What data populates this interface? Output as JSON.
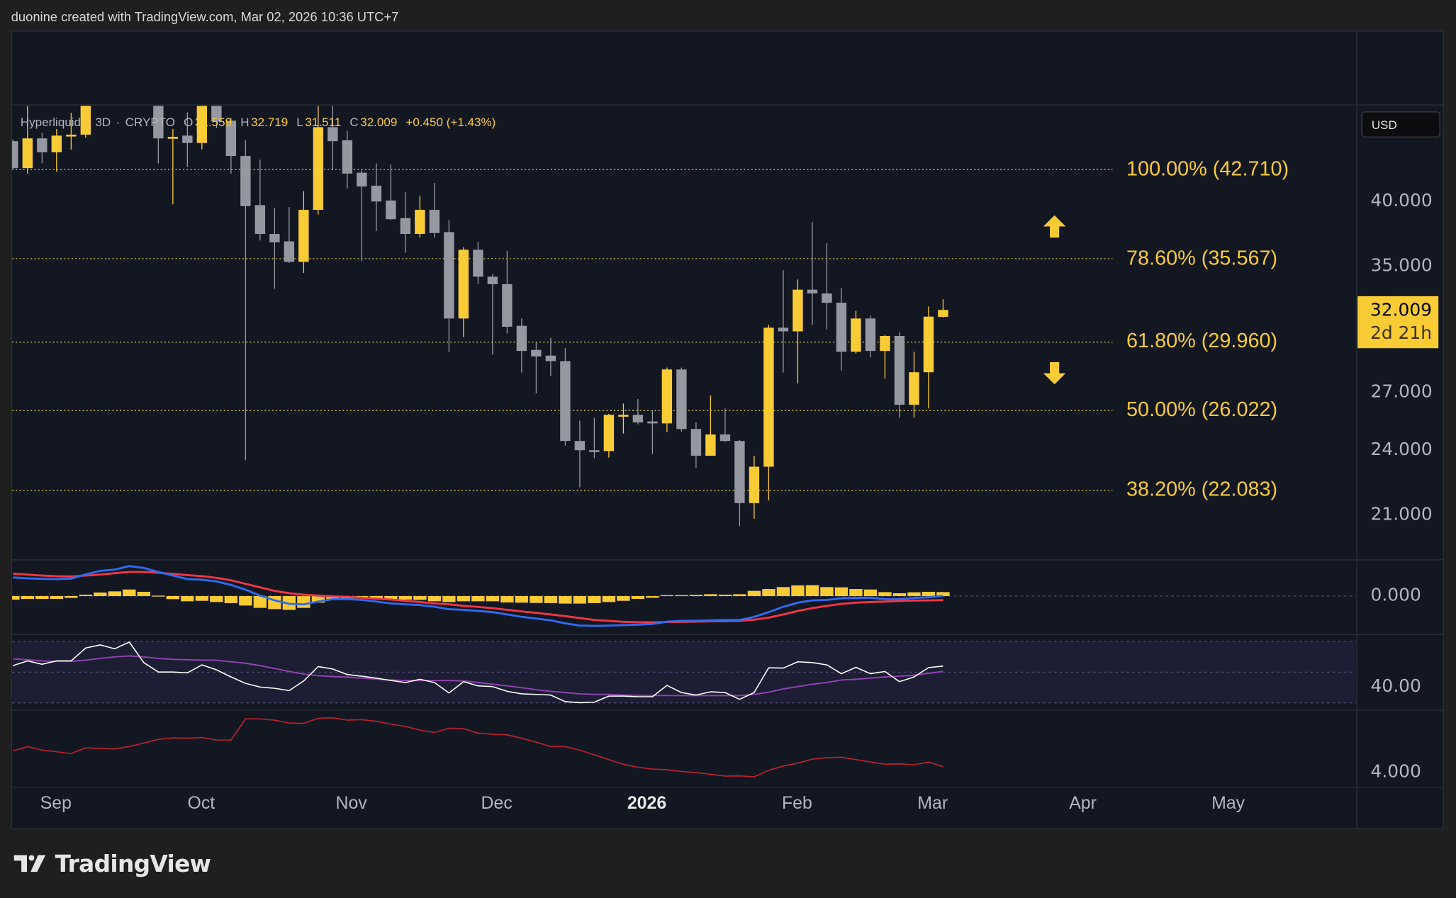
{
  "header": {
    "attribution": "duonine created with TradingView.com, Mar 02, 2026 10:36 UTC+7"
  },
  "legend": {
    "symbol": "Hyperliquid",
    "sep1": "·",
    "interval": "3D",
    "sep2": "·",
    "exchange": "CRYPTO",
    "open_label": "O",
    "open": "31.559",
    "high_label": "H",
    "high": "32.719",
    "low_label": "L",
    "low": "31.511",
    "close_label": "C",
    "close": "32.009",
    "change": "+0.450 (+1.43%)"
  },
  "price_axis": {
    "currency_button": "USD",
    "scale": "log",
    "ticks": [
      {
        "label": "40.000",
        "value": 40
      },
      {
        "label": "35.000",
        "value": 35
      },
      {
        "label": "27.000",
        "value": 27
      },
      {
        "label": "24.000",
        "value": 24
      },
      {
        "label": "21.000",
        "value": 21
      }
    ]
  },
  "price_tag": {
    "price": "32.009",
    "countdown": "2d 21h"
  },
  "indicator_axes": {
    "macd": {
      "label": "0.000",
      "value": 0
    },
    "rsi": {
      "label": "40.00",
      "value": 40
    },
    "lower": {
      "label": "4.000",
      "value": 4
    }
  },
  "time_axis": [
    {
      "label": "Sep",
      "date": "2025-09-01",
      "bold": false
    },
    {
      "label": "Oct",
      "date": "2025-10-01",
      "bold": false
    },
    {
      "label": "Nov",
      "date": "2025-11-01",
      "bold": false
    },
    {
      "label": "Dec",
      "date": "2025-12-01",
      "bold": false
    },
    {
      "label": "2026",
      "date": "2026-01-01",
      "bold": true
    },
    {
      "label": "Feb",
      "date": "2026-02-01",
      "bold": false
    },
    {
      "label": "Mar",
      "date": "2026-03-01",
      "bold": false
    },
    {
      "label": "Apr",
      "date": "2026-04-01",
      "bold": false
    },
    {
      "label": "May",
      "date": "2026-05-01",
      "bold": false
    }
  ],
  "fib_levels": [
    {
      "label": "100.00% (42.710)",
      "ratio": 1.0,
      "price": 42.71
    },
    {
      "label": "78.60% (35.567)",
      "ratio": 0.786,
      "price": 35.567
    },
    {
      "label": "61.80% (29.960)",
      "ratio": 0.618,
      "price": 29.96
    },
    {
      "label": "50.00% (26.022)",
      "ratio": 0.5,
      "price": 26.022
    },
    {
      "label": "38.20% (22.083)",
      "ratio": 0.382,
      "price": 22.083
    }
  ],
  "markers": [
    {
      "type": "arrow-up",
      "date": "2026-03-25",
      "price": 38.0
    },
    {
      "type": "arrow-down",
      "date": "2026-03-25",
      "price": 28.1
    }
  ],
  "colors": {
    "up": "#f9cb35",
    "down": "#9598a1",
    "fib": "#d9c64a",
    "macd": "#2f6bf0",
    "signal": "#f23645",
    "histogram": "#f9cb35",
    "rsi": "#ffffff",
    "rsi_ma": "#8e44ad",
    "rsi_band": "#1d1d33",
    "lower": "#b5232f",
    "pane_bg": "#131722",
    "border": "#2a2e39"
  },
  "logo": {
    "text": "TradingView"
  },
  "chart_data": {
    "type": "candlestick",
    "y_scale": "log",
    "candle_fields": [
      "date",
      "open",
      "high",
      "low",
      "close"
    ],
    "candles": [
      [
        "2025-08-22",
        45.28,
        45.45,
        42.68,
        42.84
      ],
      [
        "2025-08-25",
        42.84,
        50.0,
        42.36,
        45.54
      ],
      [
        "2025-08-28",
        45.54,
        46.06,
        43.27,
        44.26
      ],
      [
        "2025-08-31",
        44.26,
        46.42,
        42.52,
        45.8
      ],
      [
        "2025-09-03",
        45.8,
        48.0,
        44.5,
        45.89
      ],
      [
        "2025-09-06",
        45.89,
        50.5,
        45.6,
        49.8
      ],
      [
        "2025-09-09",
        null,
        null,
        null,
        null
      ],
      [
        "2025-09-12",
        null,
        null,
        null,
        null
      ],
      [
        "2025-09-15",
        null,
        null,
        null,
        null
      ],
      [
        "2025-09-18",
        null,
        null,
        null,
        null
      ],
      [
        "2025-09-21",
        50.0,
        51.0,
        43.26,
        45.54
      ],
      [
        "2025-09-24",
        45.6,
        46.42,
        39.77,
        45.68
      ],
      [
        "2025-09-27",
        45.8,
        48.04,
        42.92,
        45.11
      ],
      [
        "2025-09-30",
        45.11,
        50.0,
        44.51,
        49.5
      ],
      [
        "2025-10-03",
        50.5,
        51.0,
        46.5,
        47.14
      ],
      [
        "2025-10-06",
        47.23,
        47.5,
        42.36,
        43.92
      ],
      [
        "2025-10-09",
        43.92,
        45.36,
        23.5,
        39.62
      ],
      [
        "2025-10-12",
        39.7,
        43.58,
        36.92,
        37.42
      ],
      [
        "2025-10-15",
        37.42,
        39.47,
        33.43,
        36.78
      ],
      [
        "2025-10-18",
        36.85,
        39.55,
        35.26,
        35.33
      ],
      [
        "2025-10-21",
        35.33,
        40.85,
        34.54,
        39.32
      ],
      [
        "2025-10-24",
        39.32,
        49.0,
        38.94,
        46.6
      ],
      [
        "2025-10-27",
        46.6,
        49.5,
        42.68,
        45.28
      ],
      [
        "2025-10-30",
        45.36,
        46.24,
        41.08,
        42.36
      ],
      [
        "2025-11-02",
        42.44,
        42.68,
        35.4,
        41.25
      ],
      [
        "2025-11-05",
        41.32,
        43.26,
        37.63,
        40.0
      ],
      [
        "2025-11-08",
        40.08,
        43.17,
        38.5,
        38.57
      ],
      [
        "2025-11-11",
        38.65,
        40.77,
        36.0,
        37.42
      ],
      [
        "2025-11-14",
        37.42,
        40.46,
        37.13,
        39.32
      ],
      [
        "2025-11-17",
        39.32,
        41.56,
        37.13,
        37.49
      ],
      [
        "2025-11-20",
        37.56,
        38.5,
        29.37,
        31.45
      ],
      [
        "2025-11-23",
        31.45,
        36.4,
        30.28,
        36.22
      ],
      [
        "2025-11-26",
        36.22,
        36.8,
        33.75,
        34.27
      ],
      [
        "2025-11-29",
        34.27,
        34.47,
        29.2,
        33.75
      ],
      [
        "2025-12-02",
        33.75,
        36.15,
        30.5,
        30.92
      ],
      [
        "2025-12-05",
        30.98,
        31.45,
        28.15,
        29.42
      ],
      [
        "2025-12-08",
        29.48,
        30.0,
        26.96,
        29.09
      ],
      [
        "2025-12-11",
        29.14,
        30.22,
        27.95,
        28.81
      ],
      [
        "2025-12-14",
        28.81,
        29.59,
        24.22,
        24.45
      ],
      [
        "2025-12-17",
        24.45,
        25.5,
        22.23,
        23.99
      ],
      [
        "2025-12-20",
        23.99,
        25.65,
        23.6,
        23.95
      ],
      [
        "2025-12-23",
        23.95,
        25.85,
        23.63,
        25.8
      ],
      [
        "2025-12-26",
        25.75,
        26.4,
        24.83,
        25.8
      ],
      [
        "2025-12-29",
        25.8,
        26.65,
        25.3,
        25.4
      ],
      [
        "2026-01-01",
        25.45,
        26.04,
        23.8,
        25.35
      ],
      [
        "2026-01-04",
        25.35,
        28.43,
        24.9,
        28.32
      ],
      [
        "2026-01-07",
        28.32,
        28.43,
        24.92,
        25.06
      ],
      [
        "2026-01-10",
        25.06,
        25.4,
        23.14,
        23.72
      ],
      [
        "2026-01-13",
        23.72,
        26.85,
        23.72,
        24.78
      ],
      [
        "2026-01-16",
        24.78,
        26.14,
        24.4,
        24.45
      ],
      [
        "2026-01-19",
        24.45,
        24.5,
        20.52,
        21.52
      ],
      [
        "2026-01-22",
        21.52,
        23.72,
        20.84,
        23.19
      ],
      [
        "2026-01-25",
        23.19,
        31.04,
        21.64,
        30.86
      ],
      [
        "2026-01-28",
        30.86,
        34.73,
        28.15,
        30.63
      ],
      [
        "2026-01-31",
        30.63,
        34.07,
        27.52,
        33.37
      ],
      [
        "2026-02-03",
        33.37,
        38.35,
        31.04,
        33.11
      ],
      [
        "2026-02-06",
        33.11,
        36.71,
        30.75,
        32.48
      ],
      [
        "2026-02-09",
        32.48,
        33.5,
        28.26,
        29.37
      ],
      [
        "2026-02-12",
        29.37,
        31.94,
        29.26,
        31.45
      ],
      [
        "2026-02-15",
        31.45,
        31.63,
        29.03,
        29.42
      ],
      [
        "2026-02-18",
        29.42,
        30.4,
        27.79,
        30.34
      ],
      [
        "2026-02-21",
        30.34,
        30.57,
        25.65,
        26.34
      ],
      [
        "2026-02-24",
        26.34,
        29.37,
        25.65,
        28.16
      ],
      [
        "2026-02-27",
        28.16,
        32.24,
        26.14,
        31.57
      ],
      [
        "2026-03-02",
        31.559,
        32.719,
        31.511,
        32.009
      ]
    ],
    "macd": {
      "macd": [
        2.01,
        1.91,
        1.86,
        1.83,
        1.88,
        2.34,
        2.72,
        2.85,
        3.23,
        3.03,
        2.6,
        2.21,
        1.83,
        1.76,
        1.58,
        1.2,
        0.69,
        0.05,
        -0.46,
        -0.84,
        -0.89,
        -0.59,
        -0.33,
        -0.33,
        -0.41,
        -0.59,
        -0.79,
        -0.89,
        -0.97,
        -1.15,
        -1.42,
        -1.48,
        -1.6,
        -1.73,
        -1.98,
        -2.24,
        -2.42,
        -2.62,
        -2.93,
        -3.18,
        -3.21,
        -3.18,
        -3.13,
        -3.08,
        -3.0,
        -2.75,
        -2.67,
        -2.67,
        -2.62,
        -2.57,
        -2.57,
        -2.24,
        -1.73,
        -1.15,
        -0.71,
        -0.46,
        -0.41,
        -0.23,
        -0.2,
        -0.18,
        -0.33,
        -0.33,
        -0.2,
        -0.13,
        0.03
      ],
      "signal": [
        2.42,
        2.32,
        2.21,
        2.14,
        2.11,
        2.21,
        2.32,
        2.47,
        2.6,
        2.6,
        2.52,
        2.39,
        2.26,
        2.14,
        1.96,
        1.7,
        1.32,
        0.94,
        0.56,
        0.31,
        0.15,
        0.05,
        -0.03,
        -0.08,
        -0.18,
        -0.28,
        -0.38,
        -0.51,
        -0.64,
        -0.79,
        -0.89,
        -1.05,
        -1.17,
        -1.3,
        -1.48,
        -1.65,
        -1.81,
        -1.98,
        -2.16,
        -2.37,
        -2.57,
        -2.67,
        -2.77,
        -2.82,
        -2.82,
        -2.8,
        -2.77,
        -2.75,
        -2.72,
        -2.7,
        -2.67,
        -2.54,
        -2.32,
        -1.98,
        -1.6,
        -1.3,
        -1.05,
        -0.84,
        -0.71,
        -0.64,
        -0.59,
        -0.53,
        -0.48,
        -0.46,
        -0.43
      ],
      "histogram": [
        -0.38,
        -0.31,
        -0.31,
        -0.31,
        -0.2,
        0.15,
        0.38,
        0.51,
        0.71,
        0.46,
        0.05,
        -0.33,
        -0.56,
        -0.51,
        -0.64,
        -0.76,
        -1.02,
        -1.27,
        -1.4,
        -1.48,
        -1.27,
        -0.71,
        -0.31,
        -0.25,
        -0.2,
        -0.31,
        -0.36,
        -0.38,
        -0.41,
        -0.56,
        -0.64,
        -0.56,
        -0.56,
        -0.56,
        -0.69,
        -0.71,
        -0.74,
        -0.76,
        -0.81,
        -0.81,
        -0.76,
        -0.64,
        -0.51,
        -0.31,
        -0.18,
        0.1,
        0.1,
        0.13,
        0.2,
        0.15,
        0.2,
        0.56,
        0.76,
        0.97,
        1.15,
        1.17,
        0.97,
        0.94,
        0.76,
        0.71,
        0.43,
        0.31,
        0.41,
        0.46,
        0.43
      ]
    },
    "rsi": {
      "upper_band": 70,
      "middle": 50,
      "lower_band": 30,
      "rsi": [
        54.3,
        57.4,
        55.2,
        57.4,
        57.4,
        65.8,
        67.8,
        65.3,
        69.7,
        56.3,
        50.1,
        50.1,
        49.6,
        54.8,
        51.6,
        46.9,
        42.7,
        40.3,
        39.5,
        38.0,
        44.3,
        53.7,
        52.1,
        48.5,
        47.4,
        46.1,
        44.6,
        43.3,
        45.4,
        43.3,
        36.4,
        43.8,
        41.1,
        40.6,
        37.5,
        35.9,
        35.5,
        35.1,
        30.8,
        30.1,
        30.4,
        34.4,
        34.4,
        34.0,
        34.0,
        41.4,
        36.7,
        35.1,
        37.2,
        36.7,
        32.3,
        36.7,
        52.9,
        52.7,
        56.8,
        56.3,
        54.8,
        49.0,
        53.2,
        49.0,
        50.5,
        43.8,
        46.9,
        53.0,
        54.0
      ],
      "ma": [
        58.7,
        58.1,
        57.4,
        57.1,
        57.1,
        57.8,
        59.0,
        60.0,
        60.6,
        60.0,
        59.0,
        58.4,
        58.1,
        57.9,
        57.8,
        56.8,
        55.9,
        54.3,
        52.4,
        50.5,
        48.8,
        47.7,
        47.2,
        46.8,
        46.1,
        45.5,
        45.0,
        44.6,
        44.6,
        44.6,
        44.6,
        44.3,
        43.3,
        42.2,
        41.1,
        39.9,
        38.6,
        37.5,
        36.7,
        35.9,
        35.5,
        35.5,
        35.1,
        35.0,
        34.8,
        34.8,
        34.7,
        34.7,
        34.7,
        34.7,
        34.7,
        35.5,
        37.0,
        39.1,
        40.6,
        42.2,
        43.3,
        44.9,
        45.4,
        46.1,
        46.9,
        47.4,
        48.0,
        49.3,
        50.5
      ]
    },
    "lower_indicator": [
      5.56,
      5.88,
      5.62,
      5.49,
      5.35,
      5.79,
      5.74,
      5.7,
      5.88,
      6.15,
      6.42,
      6.54,
      6.51,
      6.56,
      6.38,
      6.37,
      7.98,
      7.97,
      7.88,
      7.66,
      7.63,
      8.02,
      8.05,
      7.88,
      7.91,
      7.79,
      7.58,
      7.4,
      7.13,
      6.95,
      7.27,
      7.23,
      6.9,
      6.81,
      6.77,
      6.51,
      6.21,
      5.88,
      5.88,
      5.62,
      5.26,
      4.9,
      4.55,
      4.32,
      4.19,
      4.14,
      4.01,
      3.92,
      3.8,
      3.66,
      3.67,
      3.6,
      4.1,
      4.42,
      4.64,
      4.94,
      5.04,
      5.08,
      4.9,
      4.72,
      4.55,
      4.58,
      4.51,
      4.72,
      4.37
    ]
  }
}
